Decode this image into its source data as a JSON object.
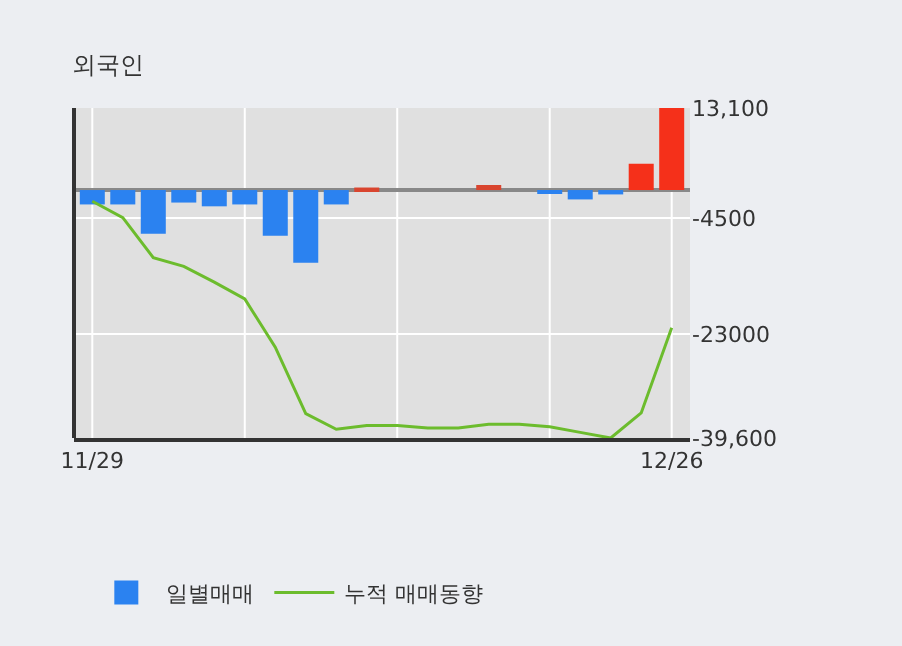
{
  "chart_data": {
    "type": "bar",
    "title": "외국인",
    "categories": [
      "11/29",
      null,
      null,
      null,
      null,
      null,
      null,
      null,
      null,
      null,
      null,
      null,
      null,
      null,
      null,
      null,
      null,
      null,
      null,
      "12/26"
    ],
    "series": [
      {
        "name": "일별매매",
        "colors": [
          "#2b82f0",
          "#2b82f0",
          "#2b82f0",
          "#2b82f0",
          "#2b82f0",
          "#2b82f0",
          "#2b82f0",
          "#2b82f0",
          "#2b82f0",
          "#d9452f",
          "#2b82f0",
          "#2b82f0",
          "#2b82f0",
          "#d9452f",
          "#2b82f0",
          "#2b82f0",
          "#2b82f0",
          "#2b82f0",
          "#f5301a",
          "#f5301a"
        ],
        "values": [
          -2300,
          -2300,
          -7000,
          -2000,
          -2600,
          -2300,
          -7300,
          -11600,
          -2300,
          400,
          0,
          0,
          0,
          800,
          0,
          -600,
          -1500,
          -700,
          4200,
          13100
        ]
      },
      {
        "name": "누적 매매동향",
        "type": "line",
        "color": "#6cbc2d",
        "values": [
          -1800,
          -4400,
          -10800,
          -12200,
          -14700,
          -17400,
          -25100,
          -35700,
          -38200,
          -37600,
          -37600,
          -38000,
          -38000,
          -37400,
          -37400,
          -37800,
          -38700,
          -39600,
          -35600,
          -22000
        ]
      }
    ],
    "ylim": [
      -39600,
      13100
    ],
    "yticks": [
      {
        "value": 13100,
        "label": "13,100"
      },
      {
        "value": -4500,
        "label": "-4500"
      },
      {
        "value": -23000,
        "label": "-23000"
      },
      {
        "value": -39600,
        "label": "-39,600"
      }
    ],
    "grid": true,
    "legend": "bottom",
    "marker": "none",
    "line_style": "solid"
  }
}
